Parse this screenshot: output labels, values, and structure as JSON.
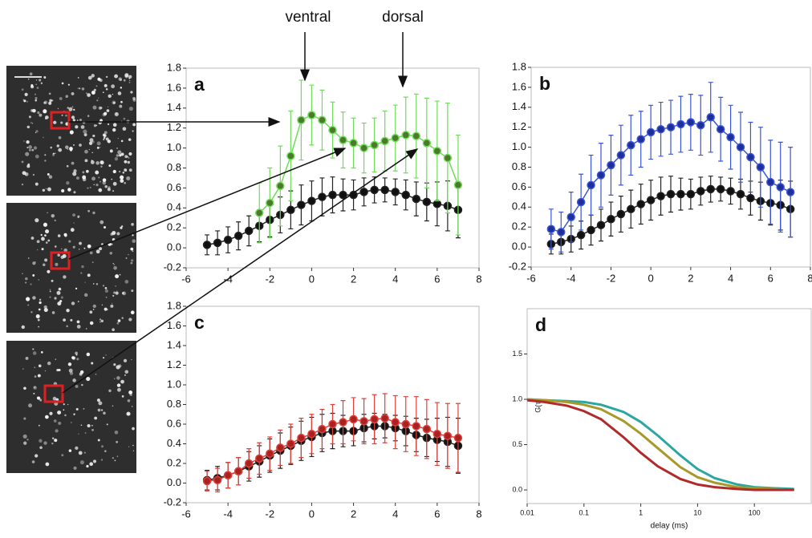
{
  "annotations": [
    "ventral",
    "dorsal"
  ],
  "chart_data": [
    {
      "type": "line",
      "label": "a",
      "markers": true,
      "x": [
        -5,
        -4.5,
        -4,
        -3.5,
        -3,
        -2.5,
        -2,
        -1.5,
        -1,
        -0.5,
        0,
        0.5,
        1,
        1.5,
        2,
        2.5,
        3,
        3.5,
        4,
        4.5,
        5,
        5.5,
        6,
        6.5,
        7
      ],
      "xlim": [
        -6,
        8
      ],
      "xticks": [
        -6,
        -4,
        -2,
        0,
        2,
        4,
        6,
        8
      ],
      "ylim": [
        -0.2,
        1.8
      ],
      "yticks": [
        -0.2,
        {
          "value": 0,
          "label": "0.0"
        },
        0.2,
        0.4,
        0.6,
        0.8,
        {
          "value": 1,
          "label": "1.0"
        },
        1.2,
        1.4,
        1.6,
        1.8
      ],
      "series": [
        {
          "color": "#222222",
          "marker_color": "#111111",
          "values": [
            0.03,
            0.05,
            0.08,
            0.12,
            0.17,
            0.22,
            0.28,
            0.33,
            0.38,
            0.43,
            0.47,
            0.51,
            0.53,
            0.53,
            0.53,
            0.56,
            0.58,
            0.58,
            0.56,
            0.53,
            0.49,
            0.46,
            0.44,
            0.42,
            0.38
          ],
          "errors": [
            0.1,
            0.12,
            0.13,
            0.14,
            0.15,
            0.16,
            0.17,
            0.18,
            0.19,
            0.2,
            0.2,
            0.19,
            0.18,
            0.16,
            0.15,
            0.14,
            0.13,
            0.12,
            0.13,
            0.15,
            0.17,
            0.19,
            0.22,
            0.25,
            0.28
          ]
        },
        {
          "color": "#6fdc5a",
          "marker_color": "#4c7a2a",
          "values": [
            null,
            null,
            null,
            null,
            null,
            0.35,
            0.45,
            0.62,
            0.92,
            1.28,
            1.33,
            1.28,
            1.18,
            1.08,
            1.05,
            1.0,
            1.03,
            1.07,
            1.1,
            1.13,
            1.12,
            1.05,
            0.97,
            0.9,
            0.63
          ],
          "errors": [
            null,
            null,
            null,
            null,
            null,
            0.3,
            0.35,
            0.4,
            0.45,
            0.4,
            0.3,
            0.3,
            0.28,
            0.28,
            0.25,
            0.25,
            0.27,
            0.3,
            0.33,
            0.38,
            0.42,
            0.45,
            0.5,
            0.55,
            0.5
          ]
        }
      ]
    },
    {
      "type": "line",
      "label": "b",
      "markers": true,
      "x": [
        -5,
        -4.5,
        -4,
        -3.5,
        -3,
        -2.5,
        -2,
        -1.5,
        -1,
        -0.5,
        0,
        0.5,
        1,
        1.5,
        2,
        2.5,
        3,
        3.5,
        4,
        4.5,
        5,
        5.5,
        6,
        6.5,
        7
      ],
      "xlim": [
        -6,
        8
      ],
      "xticks": [
        -6,
        -4,
        -2,
        0,
        2,
        4,
        6,
        8
      ],
      "ylim": [
        -0.2,
        1.8
      ],
      "yticks": [
        -0.2,
        {
          "value": 0,
          "label": "0.0"
        },
        0.2,
        0.4,
        0.6,
        0.8,
        {
          "value": 1,
          "label": "1.0"
        },
        1.2,
        1.4,
        1.6,
        1.8
      ],
      "series": [
        {
          "color": "#222222",
          "marker_color": "#111111",
          "values": [
            0.03,
            0.05,
            0.08,
            0.12,
            0.17,
            0.22,
            0.28,
            0.33,
            0.38,
            0.43,
            0.47,
            0.51,
            0.53,
            0.53,
            0.53,
            0.56,
            0.58,
            0.58,
            0.56,
            0.53,
            0.49,
            0.46,
            0.44,
            0.42,
            0.38
          ],
          "errors": [
            0.1,
            0.12,
            0.13,
            0.14,
            0.15,
            0.16,
            0.17,
            0.18,
            0.19,
            0.2,
            0.2,
            0.19,
            0.18,
            0.16,
            0.15,
            0.14,
            0.13,
            0.12,
            0.13,
            0.15,
            0.17,
            0.19,
            0.22,
            0.25,
            0.28
          ]
        },
        {
          "color": "#3a55d8",
          "marker_color": "#1f2f99",
          "values": [
            0.18,
            0.15,
            0.3,
            0.45,
            0.62,
            0.72,
            0.82,
            0.92,
            1.02,
            1.08,
            1.15,
            1.18,
            1.2,
            1.23,
            1.25,
            1.22,
            1.3,
            1.18,
            1.1,
            1.0,
            0.9,
            0.8,
            0.65,
            0.6,
            0.55
          ],
          "errors": [
            0.2,
            0.2,
            0.25,
            0.28,
            0.3,
            0.32,
            0.3,
            0.3,
            0.3,
            0.28,
            0.27,
            0.27,
            0.27,
            0.28,
            0.28,
            0.3,
            0.35,
            0.32,
            0.32,
            0.35,
            0.35,
            0.4,
            0.42,
            0.45,
            0.45
          ]
        }
      ]
    },
    {
      "type": "line",
      "label": "c",
      "markers": true,
      "x": [
        -5,
        -4.5,
        -4,
        -3.5,
        -3,
        -2.5,
        -2,
        -1.5,
        -1,
        -0.5,
        0,
        0.5,
        1,
        1.5,
        2,
        2.5,
        3,
        3.5,
        4,
        4.5,
        5,
        5.5,
        6,
        6.5,
        7
      ],
      "xlim": [
        -6,
        8
      ],
      "xticks": [
        -6,
        -4,
        -2,
        0,
        2,
        4,
        6,
        8
      ],
      "ylim": [
        -0.2,
        1.8
      ],
      "yticks": [
        -0.2,
        {
          "value": 0,
          "label": "0.0"
        },
        0.2,
        0.4,
        0.6,
        0.8,
        {
          "value": 1,
          "label": "1.0"
        },
        1.2,
        1.4,
        1.6,
        1.8
      ],
      "series": [
        {
          "color": "#222222",
          "marker_color": "#111111",
          "values": [
            0.03,
            0.05,
            0.08,
            0.12,
            0.17,
            0.22,
            0.28,
            0.33,
            0.38,
            0.43,
            0.47,
            0.51,
            0.53,
            0.53,
            0.53,
            0.56,
            0.58,
            0.58,
            0.56,
            0.53,
            0.49,
            0.46,
            0.44,
            0.42,
            0.38
          ],
          "errors": [
            0.1,
            0.12,
            0.13,
            0.14,
            0.15,
            0.16,
            0.17,
            0.18,
            0.19,
            0.2,
            0.2,
            0.19,
            0.18,
            0.16,
            0.15,
            0.14,
            0.13,
            0.12,
            0.13,
            0.15,
            0.17,
            0.19,
            0.22,
            0.25,
            0.28
          ]
        },
        {
          "color": "#e0403a",
          "marker_color": "#a82222",
          "values": [
            0.02,
            0.03,
            0.08,
            0.12,
            0.2,
            0.25,
            0.3,
            0.36,
            0.4,
            0.46,
            0.5,
            0.55,
            0.6,
            0.62,
            0.65,
            0.63,
            0.65,
            0.66,
            0.62,
            0.6,
            0.58,
            0.55,
            0.5,
            0.48,
            0.46
          ],
          "errors": [
            0.1,
            0.12,
            0.13,
            0.14,
            0.15,
            0.16,
            0.17,
            0.18,
            0.2,
            0.2,
            0.2,
            0.2,
            0.2,
            0.22,
            0.22,
            0.23,
            0.25,
            0.25,
            0.27,
            0.28,
            0.3,
            0.3,
            0.32,
            0.33,
            0.35
          ]
        }
      ]
    },
    {
      "type": "line",
      "label": "d",
      "markers": false,
      "xscale": "log",
      "xlabel": "delay (ms)",
      "ylabel": "G(τ)",
      "x": [
        0.01,
        0.02,
        0.05,
        0.1,
        0.2,
        0.5,
        1,
        2,
        5,
        10,
        20,
        50,
        100,
        200,
        500
      ],
      "xlim": [
        0.01,
        1000
      ],
      "xticks": [
        0.01,
        0.1,
        1,
        10,
        100
      ],
      "ylim": [
        -0.15,
        2.0
      ],
      "yticks": [
        {
          "value": 0,
          "label": "0.0"
        },
        0.5,
        {
          "value": 1,
          "label": "1.0"
        },
        1.5
      ],
      "series": [
        {
          "color": "#2aa7a0",
          "values": [
            1.0,
            0.99,
            0.98,
            0.97,
            0.94,
            0.86,
            0.75,
            0.6,
            0.38,
            0.23,
            0.13,
            0.06,
            0.03,
            0.02,
            0.01
          ]
        },
        {
          "color": "#a89a2a",
          "values": [
            1.0,
            0.99,
            0.97,
            0.94,
            0.89,
            0.76,
            0.62,
            0.46,
            0.25,
            0.14,
            0.08,
            0.03,
            0.02,
            0.01,
            0.0
          ]
        },
        {
          "color": "#b02a2a",
          "values": [
            0.99,
            0.97,
            0.93,
            0.87,
            0.78,
            0.58,
            0.41,
            0.26,
            0.12,
            0.06,
            0.03,
            0.01,
            0.0,
            0.0,
            0.0
          ]
        }
      ]
    }
  ]
}
